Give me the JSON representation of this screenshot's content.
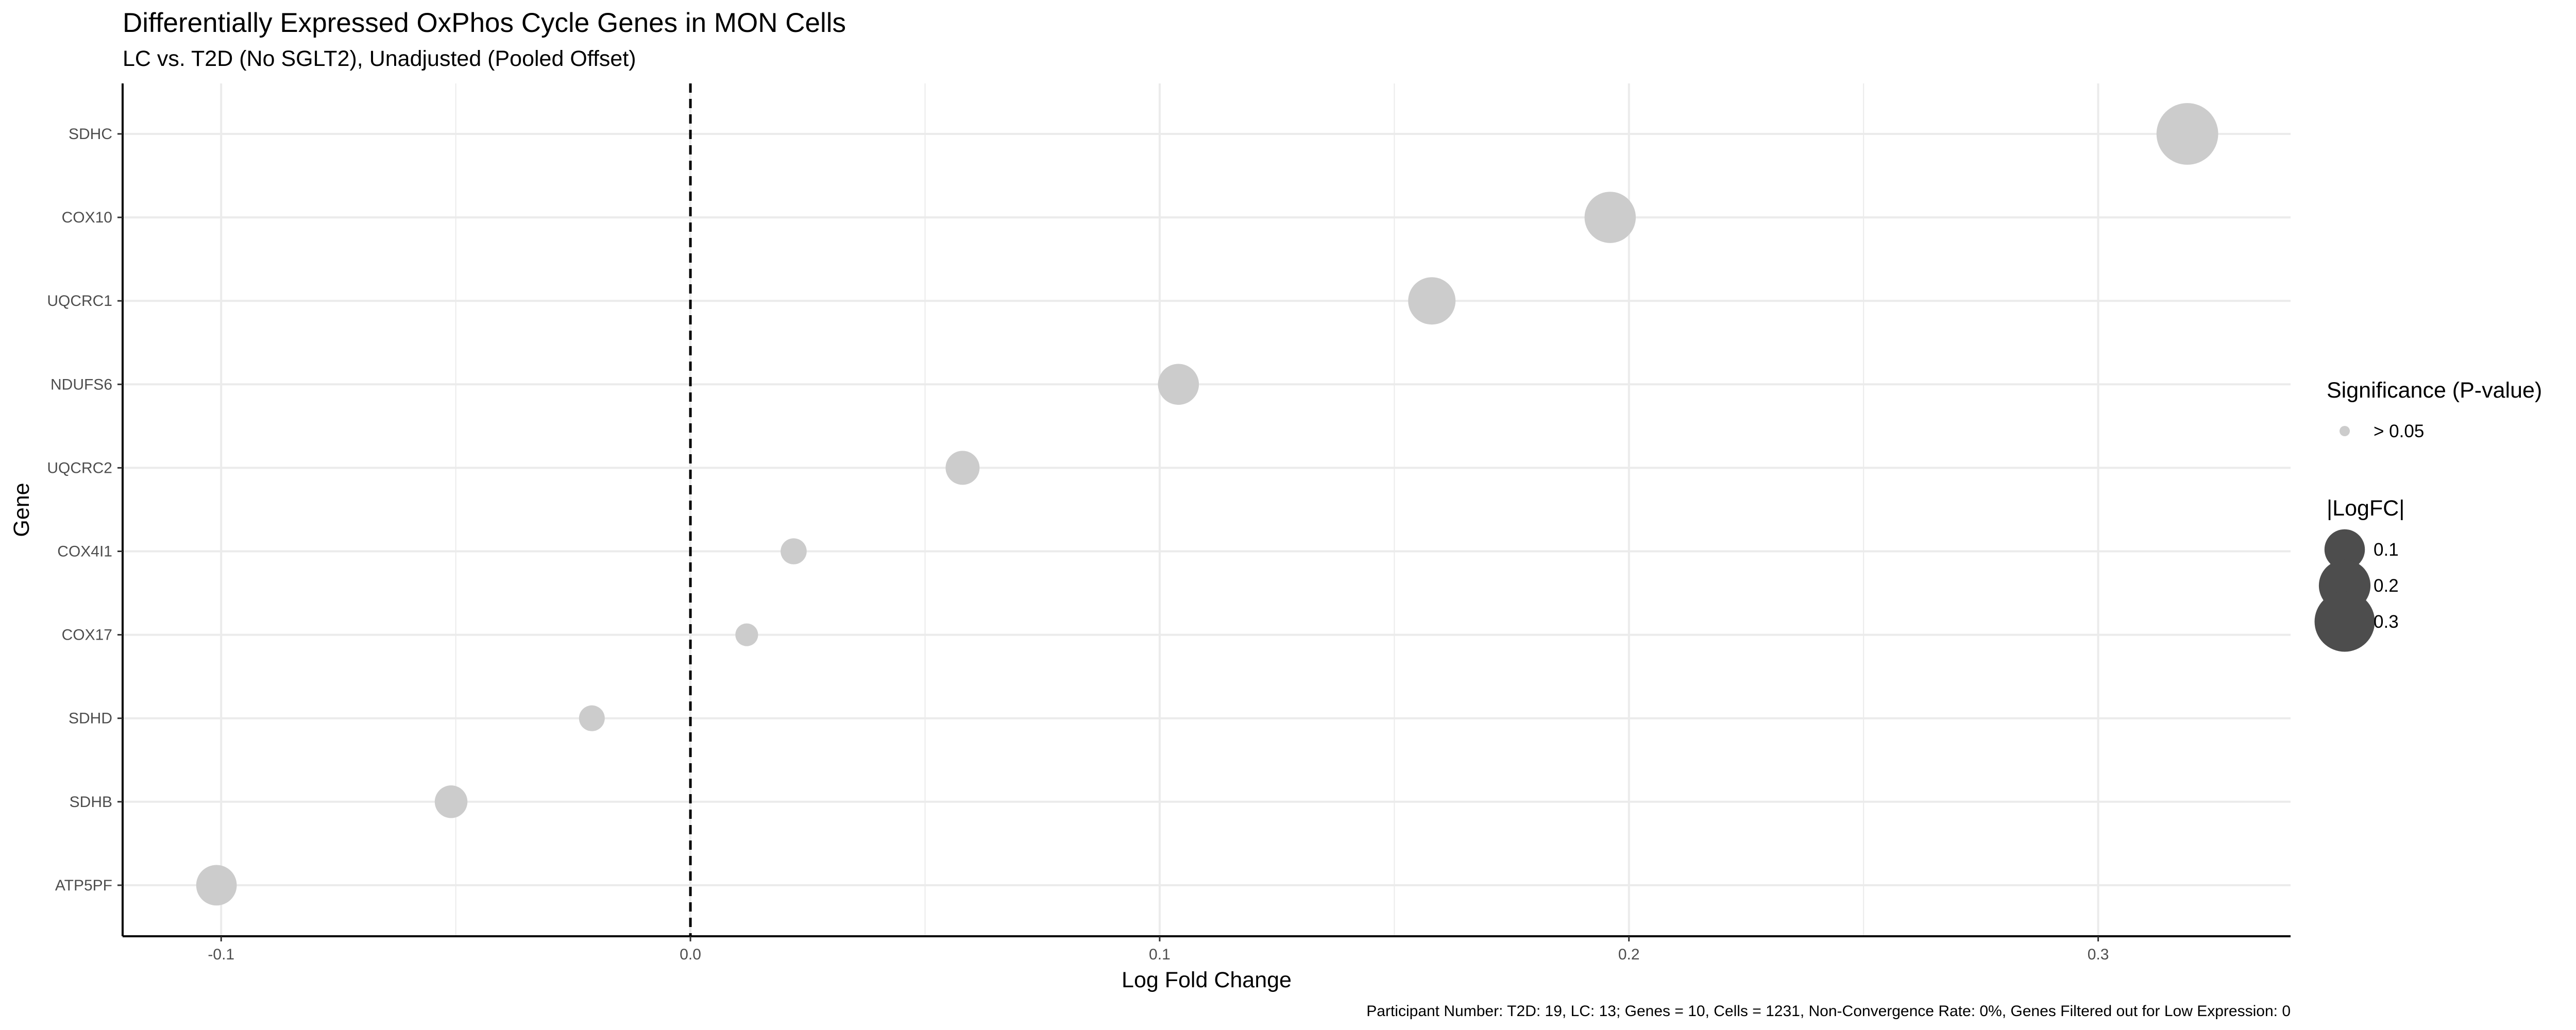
{
  "chart_data": {
    "type": "scatter",
    "title": "Differentially Expressed OxPhos Cycle Genes in MON Cells",
    "subtitle": "LC vs. T2D (No SGLT2), Unadjusted (Pooled Offset)",
    "xlabel": "Log Fold Change",
    "ylabel": "Gene",
    "xlim": [
      -0.121,
      0.341
    ],
    "x_ticks": [
      -0.1,
      0.0,
      0.1,
      0.2,
      0.3
    ],
    "x_tick_labels": [
      "-0.1",
      "0.0",
      "0.1",
      "0.2",
      "0.3"
    ],
    "reference_line": {
      "x": 0,
      "style": "dashed"
    },
    "grid": true,
    "categories": [
      "SDHC",
      "COX10",
      "UQCRC1",
      "NDUFS6",
      "UQCRC2",
      "COX4I1",
      "COX17",
      "SDHD",
      "SDHB",
      "ATP5PF"
    ],
    "points": [
      {
        "gene": "SDHC",
        "logfc": 0.319,
        "abs_logfc": 0.319,
        "significance": "> 0.05"
      },
      {
        "gene": "COX10",
        "logfc": 0.196,
        "abs_logfc": 0.196,
        "significance": "> 0.05"
      },
      {
        "gene": "UQCRC1",
        "logfc": 0.158,
        "abs_logfc": 0.158,
        "significance": "> 0.05"
      },
      {
        "gene": "NDUFS6",
        "logfc": 0.104,
        "abs_logfc": 0.104,
        "significance": "> 0.05"
      },
      {
        "gene": "UQCRC2",
        "logfc": 0.058,
        "abs_logfc": 0.058,
        "significance": "> 0.05"
      },
      {
        "gene": "COX4I1",
        "logfc": 0.022,
        "abs_logfc": 0.022,
        "significance": "> 0.05"
      },
      {
        "gene": "COX17",
        "logfc": 0.012,
        "abs_logfc": 0.012,
        "significance": "> 0.05"
      },
      {
        "gene": "SDHD",
        "logfc": -0.021,
        "abs_logfc": 0.021,
        "significance": "> 0.05"
      },
      {
        "gene": "SDHB",
        "logfc": -0.051,
        "abs_logfc": 0.051,
        "significance": "> 0.05"
      },
      {
        "gene": "ATP5PF",
        "logfc": -0.101,
        "abs_logfc": 0.101,
        "significance": "> 0.05"
      }
    ],
    "legend": {
      "placement": "right",
      "color_title": "Significance (P-value)",
      "color_entries": [
        {
          "label": "> 0.05",
          "color": "#cccccc"
        }
      ],
      "size_title": "|LogFC|",
      "size_entries": [
        {
          "label": "0.1",
          "value": 0.1
        },
        {
          "label": "0.2",
          "value": 0.2
        },
        {
          "label": "0.3",
          "value": 0.3
        }
      ]
    },
    "caption": "Participant Number: T2D: 19, LC: 13; Genes = 10, Cells = 1231, Non-Convergence Rate: 0%, Genes Filtered out for Low Expression: 0"
  },
  "colors": {
    "point": "#cccccc",
    "legend_size_point": "#4d4d4d",
    "grid": "#ebebeb",
    "axis": "#000000",
    "reference_line": "#000000"
  }
}
